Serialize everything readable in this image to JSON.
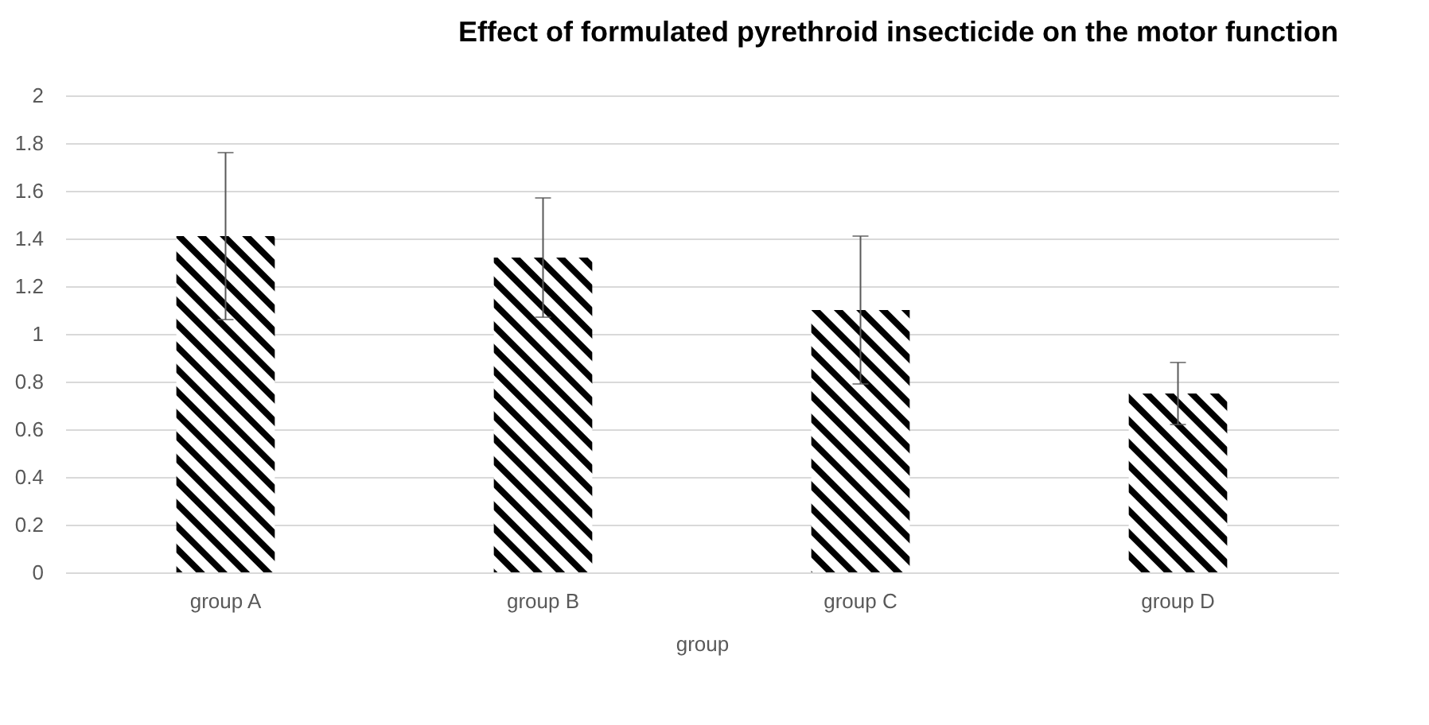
{
  "chart_data": {
    "type": "bar",
    "title": "Effect of formulated pyrethroid insecticide on the motor function",
    "xlabel": "group",
    "categories": [
      "group A",
      "group B",
      "group C",
      "group D"
    ],
    "values": [
      1.41,
      1.32,
      1.1,
      0.75
    ],
    "errors": [
      0.35,
      0.25,
      0.31,
      0.13
    ],
    "color": "#000000",
    "ylim": [
      0,
      2
    ],
    "yticks": [
      0,
      0.2,
      0.4,
      0.6,
      0.8,
      1,
      1.2,
      1.4,
      1.6,
      1.8,
      2
    ],
    "grid": "y"
  }
}
